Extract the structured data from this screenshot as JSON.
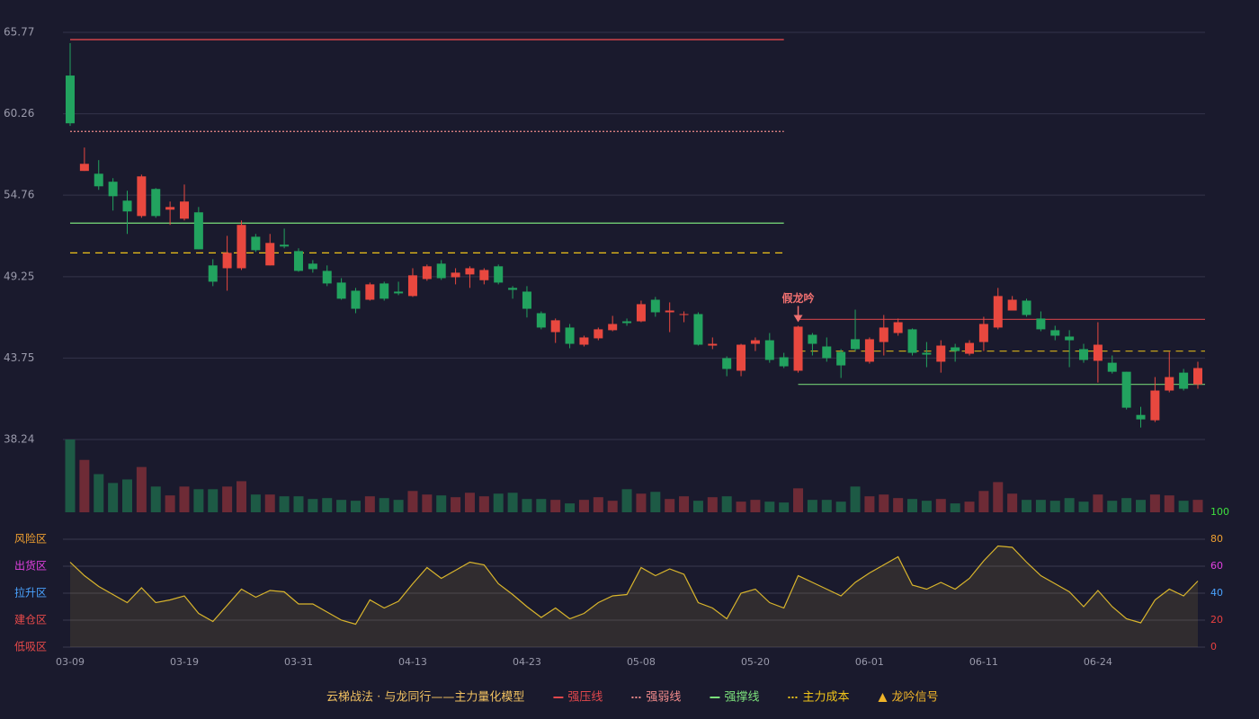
{
  "chart_data": {
    "type": "candlestick",
    "categories": [
      "03-09",
      null,
      null,
      null,
      null,
      null,
      null,
      null,
      "03-19",
      null,
      null,
      null,
      null,
      null,
      null,
      null,
      "03-31",
      null,
      null,
      null,
      null,
      null,
      null,
      null,
      "04-13",
      null,
      null,
      null,
      null,
      null,
      null,
      null,
      "04-23",
      null,
      null,
      null,
      null,
      null,
      null,
      null,
      "05-08",
      null,
      null,
      null,
      null,
      null,
      null,
      null,
      "05-20",
      null,
      null,
      null,
      null,
      null,
      null,
      null,
      "06-01",
      null,
      null,
      null,
      null,
      null,
      null,
      null,
      "06-11",
      null,
      null,
      null,
      null,
      null,
      null,
      null,
      "06-24",
      null,
      null,
      null,
      null,
      null,
      null,
      null
    ],
    "candles": {
      "open": [
        62.85,
        56.4,
        56.21,
        55.67,
        54.39,
        53.35,
        55.18,
        53.78,
        53.17,
        53.6,
        50.01,
        49.82,
        49.82,
        51.95,
        50.01,
        51.41,
        50.98,
        50.13,
        49.64,
        48.85,
        48.3,
        47.69,
        48.79,
        48.24,
        47.94,
        49.09,
        50.13,
        49.21,
        49.4,
        49.01,
        49.95,
        48.49,
        48.24,
        46.78,
        45.5,
        45.81,
        44.65,
        45.08,
        45.63,
        46.23,
        46.23,
        47.69,
        46.84,
        46.66,
        46.72,
        44.59,
        43.74,
        42.89,
        44.71,
        44.95,
        43.8,
        42.89,
        45.32,
        44.53,
        44.16,
        45.02,
        43.5,
        44.83,
        45.44,
        45.69,
        44.1,
        43.5,
        44.47,
        44.04,
        44.83,
        45.81,
        46.96,
        47.63,
        46.42,
        45.63,
        45.2,
        44.35,
        43.56,
        43.43,
        42.82,
        39.9,
        39.54,
        41.55,
        42.76,
        41.97
      ],
      "high": [
        65.04,
        57.98,
        57.13,
        55.91,
        55.06,
        56.15,
        55.24,
        54.33,
        55.48,
        53.96,
        50.43,
        52.01,
        53.05,
        52.14,
        52.14,
        52.5,
        51.17,
        50.37,
        50.01,
        49.15,
        48.49,
        48.85,
        48.91,
        48.91,
        49.82,
        50.07,
        50.37,
        49.82,
        49.95,
        49.82,
        50.07,
        48.61,
        48.61,
        46.9,
        46.42,
        46.05,
        45.26,
        45.81,
        46.6,
        46.42,
        47.63,
        47.88,
        47.51,
        46.9,
        46.84,
        45.14,
        43.86,
        44.71,
        45.14,
        45.44,
        44.1,
        45.93,
        45.44,
        45.14,
        44.35,
        47.02,
        45.14,
        46.66,
        46.42,
        45.75,
        44.83,
        44.95,
        44.71,
        44.95,
        46.54,
        48.49,
        47.94,
        47.76,
        46.9,
        45.93,
        45.63,
        44.71,
        46.17,
        43.92,
        42.82,
        40.45,
        42.46,
        44.16,
        43.01,
        43.5
      ],
      "low": [
        59.44,
        56.4,
        55.12,
        53.72,
        52.14,
        53.23,
        53.23,
        52.75,
        53.05,
        51.1,
        48.61,
        48.3,
        49.7,
        50.92,
        50.01,
        51.17,
        49.58,
        49.52,
        48.61,
        47.69,
        46.78,
        47.63,
        47.63,
        48.0,
        47.88,
        48.97,
        49.03,
        48.73,
        48.49,
        48.73,
        48.73,
        47.76,
        46.49,
        45.69,
        44.77,
        44.41,
        44.53,
        44.95,
        45.56,
        45.93,
        46.17,
        46.54,
        45.5,
        46.17,
        44.59,
        44.35,
        42.52,
        42.52,
        44.22,
        43.43,
        43.07,
        42.76,
        43.92,
        43.5,
        42.4,
        44.22,
        43.37,
        43.92,
        45.26,
        43.92,
        43.13,
        42.76,
        43.5,
        43.92,
        44.22,
        45.69,
        46.96,
        46.54,
        45.56,
        44.95,
        43.13,
        43.43,
        42.09,
        42.7,
        40.27,
        39.05,
        39.42,
        41.43,
        41.55,
        41.67
      ],
      "close": [
        59.62,
        56.88,
        55.36,
        54.69,
        53.66,
        56.03,
        53.35,
        53.96,
        54.33,
        51.1,
        48.91,
        50.86,
        52.75,
        51.04,
        51.53,
        51.29,
        49.64,
        49.76,
        48.79,
        47.76,
        47.08,
        48.73,
        47.76,
        48.12,
        49.34,
        49.95,
        49.15,
        49.52,
        49.82,
        49.7,
        48.85,
        48.36,
        47.08,
        45.81,
        46.3,
        44.71,
        45.14,
        45.69,
        46.05,
        46.11,
        47.39,
        46.84,
        46.96,
        46.72,
        44.65,
        44.71,
        43.01,
        44.65,
        44.95,
        43.62,
        43.19,
        45.87,
        44.71,
        43.74,
        43.25,
        44.35,
        45.02,
        45.81,
        46.17,
        44.1,
        43.98,
        44.59,
        44.22,
        44.77,
        46.05,
        47.94,
        47.69,
        46.66,
        45.69,
        45.26,
        44.95,
        43.62,
        44.65,
        42.82,
        40.39,
        39.6,
        41.55,
        42.46,
        41.67,
        43.07
      ],
      "up_color": "#e8483f",
      "down_color": "#22a35f"
    },
    "ylim": [
      38.24,
      65.77
    ],
    "yticks": [
      38.24,
      43.75,
      49.25,
      54.76,
      60.26,
      65.77
    ],
    "grid": true,
    "levels": [
      {
        "name": "强压线",
        "color": "#e0474c",
        "dash": "solid",
        "segments": [
          {
            "from": 0,
            "to": 50,
            "value": 65.28
          },
          {
            "from": 51,
            "to": 79,
            "value": 46.36
          }
        ]
      },
      {
        "name": "强弱线",
        "color": "#f08a8a",
        "dash": "dotted",
        "segments": [
          {
            "from": 0,
            "to": 50,
            "value": 59.07
          }
        ]
      },
      {
        "name": "强撑线",
        "color": "#7be07b",
        "dash": "solid",
        "segments": [
          {
            "from": 0,
            "to": 50,
            "value": 52.87
          },
          {
            "from": 51,
            "to": 79,
            "value": 41.97
          }
        ]
      },
      {
        "name": "主力成本",
        "color": "#f0c419",
        "dash": "dashed",
        "segments": [
          {
            "from": 0,
            "to": 50,
            "value": 50.86
          },
          {
            "from": 51,
            "to": 79,
            "value": 44.22
          }
        ]
      }
    ],
    "signal": {
      "name": "龙吟信号",
      "color": "#f0b429",
      "label": "假龙吟",
      "label_color": "#f07070",
      "index": 51
    },
    "volume": {
      "values": [
        82,
        59,
        43,
        33,
        37,
        51,
        29,
        19,
        29,
        26,
        26,
        29,
        35,
        20,
        20,
        18,
        18,
        15,
        16,
        14,
        13,
        18,
        16,
        14,
        24,
        20,
        19,
        17,
        22,
        18,
        21,
        22,
        15,
        15,
        14,
        10,
        14,
        17,
        13,
        26,
        21,
        23,
        15,
        18,
        13,
        17,
        18,
        12,
        14,
        12,
        11,
        27,
        14,
        14,
        12,
        29,
        18,
        20,
        16,
        15,
        13,
        15,
        10,
        12,
        24,
        34,
        21,
        14,
        14,
        13,
        16,
        12,
        20,
        13,
        16,
        14,
        20,
        19,
        13,
        14
      ],
      "up_color": "#6e2b36",
      "down_color": "#1d5a45"
    },
    "indicator": {
      "values": [
        63,
        53,
        45,
        39,
        33,
        44,
        33,
        35,
        38,
        25,
        19,
        31,
        43,
        37,
        42,
        41,
        32,
        32,
        26,
        20,
        17,
        35,
        29,
        34,
        47,
        59,
        51,
        57,
        63,
        61,
        47,
        39,
        30,
        22,
        29,
        21,
        25,
        33,
        38,
        39,
        59,
        53,
        58,
        54,
        33,
        29,
        21,
        40,
        43,
        33,
        29,
        53,
        48,
        43,
        38,
        48,
        55,
        61,
        67,
        46,
        43,
        48,
        43,
        51,
        64,
        75,
        74,
        63,
        53,
        47,
        41,
        30,
        42,
        30,
        21,
        18,
        35,
        43,
        38,
        49
      ],
      "color": "#d9b52c",
      "ylim": [
        0,
        100
      ],
      "yticks": [
        0,
        20,
        40,
        60,
        80,
        100
      ],
      "ytick_colors": [
        "#e84040",
        "#e84040",
        "#4aa3ff",
        "#e040e0",
        "#f0a030",
        "#3ee03e"
      ],
      "zones": [
        {
          "label": "风险区",
          "value": 80,
          "color": "#f0a030"
        },
        {
          "label": "出货区",
          "value": 60,
          "color": "#e040e0"
        },
        {
          "label": "拉升区",
          "value": 40,
          "color": "#4aa3ff"
        },
        {
          "label": "建仓区",
          "value": 20,
          "color": "#e84a4a"
        },
        {
          "label": "低吸区",
          "value": 0,
          "color": "#e84a4a"
        }
      ]
    },
    "legend": {
      "title": "云梯战法 · 与龙同行——主力量化模型",
      "title_color": "#f0c060"
    }
  }
}
